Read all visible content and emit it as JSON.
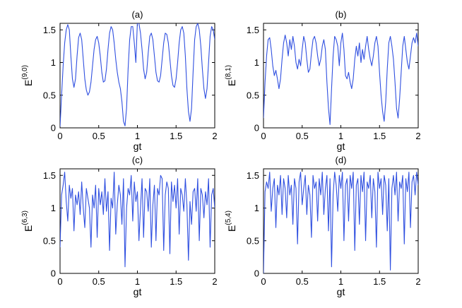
{
  "chart_data": [
    {
      "type": "line",
      "title": "(a)",
      "xlabel": "gt",
      "ylabel_base": "E",
      "ylabel_sup": "(9,0)",
      "xlim": [
        0,
        2
      ],
      "ylim": [
        0,
        1.6
      ],
      "xticks": [
        0,
        0.5,
        1,
        1.5,
        2
      ],
      "xtick_labels": [
        "0",
        "0.5",
        "1",
        "1.5",
        "2"
      ],
      "yticks": [
        0,
        0.5,
        1,
        1.5
      ],
      "ytick_labels": [
        "0",
        "0.5",
        "1",
        "1.5"
      ],
      "color": "#3050e0",
      "x": [
        0,
        0.02,
        0.04,
        0.06,
        0.08,
        0.1,
        0.12,
        0.14,
        0.16,
        0.18,
        0.2,
        0.22,
        0.24,
        0.26,
        0.28,
        0.3,
        0.32,
        0.34,
        0.36,
        0.38,
        0.4,
        0.42,
        0.44,
        0.46,
        0.48,
        0.5,
        0.52,
        0.54,
        0.56,
        0.58,
        0.6,
        0.62,
        0.64,
        0.66,
        0.68,
        0.7,
        0.72,
        0.74,
        0.76,
        0.78,
        0.8,
        0.82,
        0.84,
        0.86,
        0.88,
        0.9,
        0.92,
        0.94,
        0.96,
        0.98,
        1,
        1.02,
        1.04,
        1.06,
        1.08,
        1.1,
        1.12,
        1.14,
        1.16,
        1.18,
        1.2,
        1.22,
        1.24,
        1.26,
        1.28,
        1.3,
        1.32,
        1.34,
        1.36,
        1.38,
        1.4,
        1.42,
        1.44,
        1.46,
        1.48,
        1.5,
        1.52,
        1.54,
        1.56,
        1.58,
        1.6,
        1.62,
        1.64,
        1.66,
        1.68,
        1.7,
        1.72,
        1.74,
        1.76,
        1.78,
        1.8,
        1.82,
        1.84,
        1.86,
        1.88,
        1.9,
        1.92,
        1.94,
        1.96,
        1.98,
        2
      ],
      "y": [
        0.02,
        0.5,
        0.95,
        1.3,
        1.5,
        1.58,
        1.5,
        1.1,
        0.75,
        0.62,
        0.75,
        1.1,
        1.38,
        1.45,
        1.35,
        1.05,
        0.75,
        0.58,
        0.5,
        0.55,
        0.7,
        0.95,
        1.2,
        1.35,
        1.4,
        1.3,
        1.1,
        0.85,
        0.7,
        0.72,
        0.9,
        1.2,
        1.45,
        1.55,
        1.5,
        1.3,
        1.05,
        0.85,
        0.7,
        0.6,
        0.4,
        0.1,
        0.03,
        0.3,
        0.9,
        1.35,
        1.55,
        1.55,
        1.3,
        1.0,
        1.62,
        1.6,
        1.45,
        1.2,
        0.9,
        0.75,
        0.85,
        1.15,
        1.4,
        1.45,
        1.35,
        1.1,
        0.85,
        0.72,
        0.7,
        0.8,
        1.05,
        1.3,
        1.45,
        1.43,
        1.3,
        1.05,
        0.8,
        0.65,
        0.62,
        0.75,
        1.0,
        1.3,
        1.5,
        1.55,
        1.45,
        1.1,
        0.6,
        0.25,
        0.1,
        0.3,
        0.85,
        1.35,
        1.55,
        1.6,
        1.5,
        1.25,
        0.9,
        0.6,
        0.45,
        0.6,
        1.0,
        1.4,
        1.55,
        1.5,
        1.35
      ]
    },
    {
      "type": "line",
      "title": "(b)",
      "xlabel": "gt",
      "ylabel_base": "E",
      "ylabel_sup": "(8,1)",
      "xlim": [
        0,
        2
      ],
      "ylim": [
        0,
        1.6
      ],
      "xticks": [
        0,
        0.5,
        1,
        1.5,
        2
      ],
      "xtick_labels": [
        "0",
        "0.5",
        "1",
        "1.5",
        "2"
      ],
      "yticks": [
        0,
        0.5,
        1,
        1.5
      ],
      "ytick_labels": [
        "0",
        "0.5",
        "1",
        "1.5"
      ],
      "color": "#3050e0",
      "x": [
        0,
        0.02,
        0.04,
        0.06,
        0.08,
        0.1,
        0.12,
        0.14,
        0.16,
        0.18,
        0.2,
        0.22,
        0.24,
        0.26,
        0.28,
        0.3,
        0.32,
        0.34,
        0.36,
        0.38,
        0.4,
        0.42,
        0.44,
        0.46,
        0.48,
        0.5,
        0.52,
        0.54,
        0.56,
        0.58,
        0.6,
        0.62,
        0.64,
        0.66,
        0.68,
        0.7,
        0.72,
        0.74,
        0.76,
        0.78,
        0.8,
        0.82,
        0.84,
        0.86,
        0.88,
        0.9,
        0.92,
        0.94,
        0.96,
        0.98,
        1,
        1.02,
        1.04,
        1.06,
        1.08,
        1.1,
        1.12,
        1.14,
        1.16,
        1.18,
        1.2,
        1.22,
        1.24,
        1.26,
        1.28,
        1.3,
        1.32,
        1.34,
        1.36,
        1.38,
        1.4,
        1.42,
        1.44,
        1.46,
        1.48,
        1.5,
        1.52,
        1.54,
        1.56,
        1.58,
        1.6,
        1.62,
        1.64,
        1.66,
        1.68,
        1.7,
        1.72,
        1.74,
        1.76,
        1.78,
        1.8,
        1.82,
        1.84,
        1.86,
        1.88,
        1.9,
        1.92,
        1.94,
        1.96,
        1.98,
        2
      ],
      "y": [
        0.15,
        0.7,
        1.1,
        1.35,
        1.38,
        1.2,
        0.95,
        0.8,
        0.88,
        0.75,
        0.6,
        0.75,
        1.05,
        1.3,
        1.42,
        1.3,
        1.1,
        1.35,
        1.2,
        1.4,
        1.25,
        1.0,
        0.9,
        1.05,
        0.95,
        1.2,
        1.4,
        1.3,
        1.05,
        0.85,
        0.9,
        1.15,
        1.35,
        1.4,
        1.3,
        1.1,
        0.95,
        1.05,
        1.25,
        1.35,
        1.2,
        0.7,
        0.3,
        0.05,
        0.6,
        1.1,
        1.4,
        1.35,
        1.25,
        0.95,
        1.3,
        1.45,
        1.2,
        0.8,
        0.75,
        0.85,
        0.7,
        0.6,
        0.75,
        1.05,
        1.25,
        1.1,
        1.3,
        1.0,
        1.2,
        1.05,
        1.25,
        1.4,
        1.2,
        1.05,
        0.95,
        1.1,
        1.3,
        1.4,
        1.25,
        0.85,
        0.5,
        0.25,
        0.1,
        0.4,
        0.9,
        1.3,
        1.4,
        1.25,
        1.05,
        0.7,
        0.3,
        0.15,
        0.45,
        0.85,
        1.25,
        1.4,
        1.2,
        1.0,
        0.9,
        1.1,
        1.3,
        1.38,
        1.3,
        1.45,
        1.25
      ]
    },
    {
      "type": "line",
      "title": "(c)",
      "xlabel": "gt",
      "ylabel_base": "E",
      "ylabel_sup": "(6,3)",
      "xlim": [
        0,
        2
      ],
      "ylim": [
        0,
        1.6
      ],
      "xticks": [
        0,
        0.5,
        1,
        1.5,
        2
      ],
      "xtick_labels": [
        "0",
        "0.5",
        "1",
        "1.5",
        "2"
      ],
      "yticks": [
        0,
        0.5,
        1,
        1.5
      ],
      "ytick_labels": [
        "0",
        "0.5",
        "1",
        "1.5"
      ],
      "color": "#3050e0",
      "x": [
        0,
        0.02,
        0.04,
        0.06,
        0.08,
        0.1,
        0.12,
        0.14,
        0.16,
        0.18,
        0.2,
        0.22,
        0.24,
        0.26,
        0.28,
        0.3,
        0.32,
        0.34,
        0.36,
        0.38,
        0.4,
        0.42,
        0.44,
        0.46,
        0.48,
        0.5,
        0.52,
        0.54,
        0.56,
        0.58,
        0.6,
        0.62,
        0.64,
        0.66,
        0.68,
        0.7,
        0.72,
        0.74,
        0.76,
        0.78,
        0.8,
        0.82,
        0.84,
        0.86,
        0.88,
        0.9,
        0.92,
        0.94,
        0.96,
        0.98,
        1,
        1.02,
        1.04,
        1.06,
        1.08,
        1.1,
        1.12,
        1.14,
        1.16,
        1.18,
        1.2,
        1.22,
        1.24,
        1.26,
        1.28,
        1.3,
        1.32,
        1.34,
        1.36,
        1.38,
        1.4,
        1.42,
        1.44,
        1.46,
        1.48,
        1.5,
        1.52,
        1.54,
        1.56,
        1.58,
        1.6,
        1.62,
        1.64,
        1.66,
        1.68,
        1.7,
        1.72,
        1.74,
        1.76,
        1.78,
        1.8,
        1.82,
        1.84,
        1.86,
        1.88,
        1.9,
        1.92,
        1.94,
        1.96,
        1.98,
        2
      ],
      "y": [
        0.4,
        1.2,
        1.35,
        1.55,
        1.1,
        0.8,
        1.35,
        1.15,
        1.3,
        0.65,
        1.2,
        1.05,
        1.25,
        0.9,
        1.4,
        1.0,
        0.7,
        1.3,
        1.15,
        1.0,
        0.4,
        1.2,
        1.0,
        1.35,
        0.55,
        1.3,
        1.05,
        1.25,
        0.9,
        1.45,
        0.95,
        1.25,
        0.35,
        1.15,
        1.0,
        1.55,
        0.6,
        1.05,
        1.35,
        1.2,
        0.75,
        1.45,
        0.1,
        1.0,
        1.3,
        1.2,
        1.5,
        0.8,
        1.4,
        1.1,
        1.25,
        0.5,
        1.0,
        1.45,
        0.55,
        1.3,
        1.25,
        0.95,
        1.45,
        0.4,
        1.05,
        1.35,
        0.5,
        1.3,
        1.2,
        1.5,
        1.45,
        0.35,
        1.2,
        1.4,
        1.3,
        0.3,
        1.4,
        1.1,
        1.35,
        1.0,
        1.45,
        0.6,
        1.3,
        1.2,
        0.95,
        1.45,
        1.05,
        0.2,
        1.1,
        0.75,
        1.25,
        1.3,
        0.95,
        1.45,
        0.5,
        1.3,
        1.2,
        0.85,
        1.25,
        1.05,
        1.45,
        0.4,
        1.2,
        1.3,
        1.0
      ]
    },
    {
      "type": "line",
      "title": "(d)",
      "xlabel": "gt",
      "ylabel_base": "E",
      "ylabel_sup": "(5,4)",
      "xlim": [
        0,
        2
      ],
      "ylim": [
        0,
        1.6
      ],
      "xticks": [
        0,
        0.5,
        1,
        1.5,
        2
      ],
      "xtick_labels": [
        "0",
        "0.5",
        "1",
        "1.5",
        "2"
      ],
      "yticks": [
        0,
        0.5,
        1,
        1.5
      ],
      "ytick_labels": [
        "0",
        "0.5",
        "1",
        "1.5"
      ],
      "color": "#3050e0",
      "x": [
        0,
        0.02,
        0.04,
        0.06,
        0.08,
        0.1,
        0.12,
        0.14,
        0.16,
        0.18,
        0.2,
        0.22,
        0.24,
        0.26,
        0.28,
        0.3,
        0.32,
        0.34,
        0.36,
        0.38,
        0.4,
        0.42,
        0.44,
        0.46,
        0.48,
        0.5,
        0.52,
        0.54,
        0.56,
        0.58,
        0.6,
        0.62,
        0.64,
        0.66,
        0.68,
        0.7,
        0.72,
        0.74,
        0.76,
        0.78,
        0.8,
        0.82,
        0.84,
        0.86,
        0.88,
        0.9,
        0.92,
        0.94,
        0.96,
        0.98,
        1,
        1.02,
        1.04,
        1.06,
        1.08,
        1.1,
        1.12,
        1.14,
        1.16,
        1.18,
        1.2,
        1.22,
        1.24,
        1.26,
        1.28,
        1.3,
        1.32,
        1.34,
        1.36,
        1.38,
        1.4,
        1.42,
        1.44,
        1.46,
        1.48,
        1.5,
        1.52,
        1.54,
        1.56,
        1.58,
        1.6,
        1.62,
        1.64,
        1.66,
        1.68,
        1.7,
        1.72,
        1.74,
        1.76,
        1.78,
        1.8,
        1.82,
        1.84,
        1.86,
        1.88,
        1.9,
        1.92,
        1.94,
        1.96,
        1.98,
        2
      ],
      "y": [
        0.0,
        1.25,
        1.4,
        1.3,
        1.55,
        0.95,
        1.3,
        1.45,
        0.7,
        1.35,
        1.2,
        1.5,
        0.9,
        1.45,
        1.3,
        0.85,
        1.5,
        1.2,
        1.35,
        0.75,
        1.45,
        1.3,
        0.45,
        1.4,
        1.55,
        1.05,
        1.3,
        1.5,
        0.9,
        1.35,
        1.2,
        0.55,
        1.5,
        1.3,
        1.4,
        0.8,
        1.45,
        1.2,
        1.55,
        0.9,
        1.3,
        1.5,
        0.65,
        1.45,
        0.1,
        1.2,
        1.55,
        1.35,
        0.95,
        1.5,
        1.3,
        1.55,
        0.5,
        1.35,
        1.45,
        0.8,
        1.5,
        1.3,
        1.55,
        0.35,
        1.35,
        1.45,
        0.75,
        1.5,
        1.25,
        1.55,
        0.5,
        1.4,
        1.3,
        1.5,
        0.85,
        1.45,
        1.25,
        0.4,
        1.55,
        1.3,
        1.45,
        0.9,
        1.5,
        1.35,
        0.65,
        1.45,
        0.05,
        1.3,
        1.5,
        1.2,
        1.55,
        0.8,
        1.4,
        1.3,
        1.5,
        0.45,
        1.45,
        1.25,
        1.55,
        0.7,
        1.4,
        1.5,
        1.2,
        1.55,
        1.35
      ]
    }
  ]
}
